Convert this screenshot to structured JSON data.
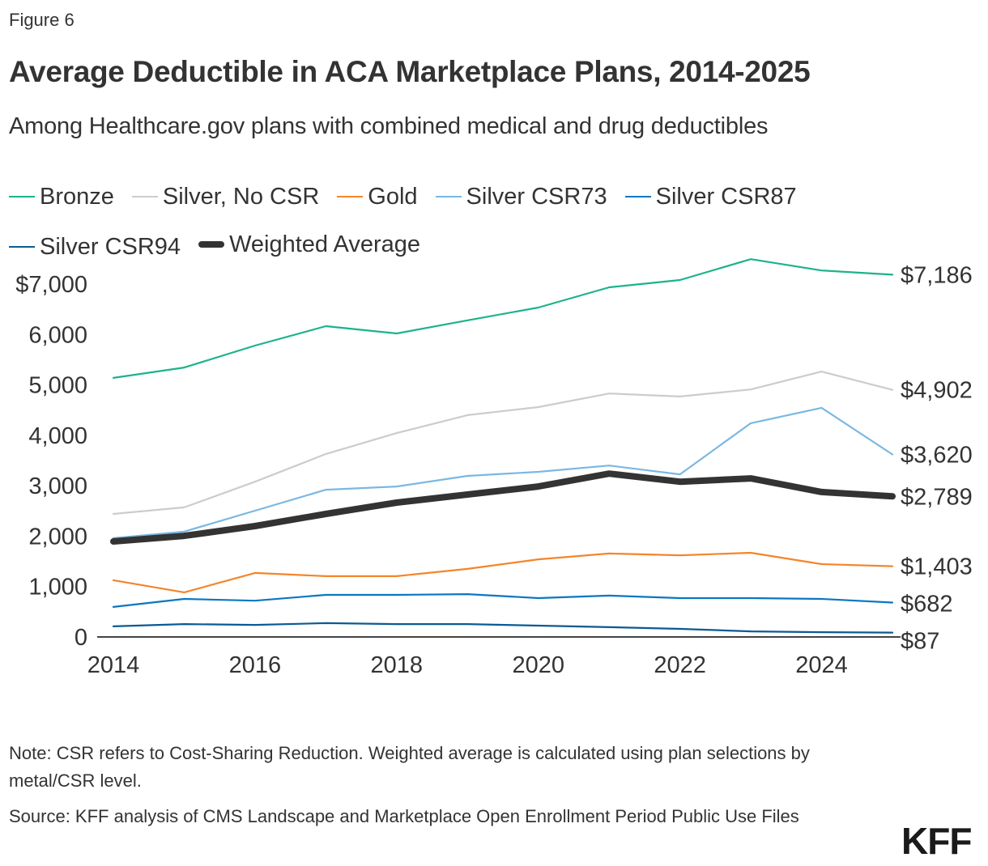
{
  "figure_label": "Figure 6",
  "title": "Average Deductible in ACA Marketplace Plans, 2014-2025",
  "subtitle": "Among Healthcare.gov plans with combined medical and drug deductibles",
  "note": "Note: CSR refers to Cost-Sharing Reduction. Weighted average is calculated using plan selections by metal/CSR level.",
  "source": "Source: KFF analysis of CMS Landscape and Marketplace Open Enrollment Period Public Use Files",
  "logo": "KFF",
  "chart_data": {
    "type": "line",
    "title": "Average Deductible in ACA Marketplace Plans, 2014-2025",
    "subtitle": "Among Healthcare.gov plans with combined medical and drug deductibles",
    "xlabel": "",
    "ylabel": "",
    "x": [
      2014,
      2015,
      2016,
      2017,
      2018,
      2019,
      2020,
      2021,
      2022,
      2023,
      2024,
      2025
    ],
    "x_ticks": [
      2014,
      2016,
      2018,
      2020,
      2022,
      2024
    ],
    "x_tick_labels": [
      "2014",
      "2016",
      "2018",
      "2020",
      "2022",
      "2024"
    ],
    "y_ticks": [
      0,
      1000,
      2000,
      3000,
      4000,
      5000,
      6000,
      7000
    ],
    "y_tick_labels": [
      "0",
      "1,000",
      "2,000",
      "3,000",
      "4,000",
      "5,000",
      "6,000",
      "$7,000"
    ],
    "ylim": [
      0,
      7000
    ],
    "xlim": [
      2014,
      2025
    ],
    "grid": false,
    "legend_position": "top",
    "series": [
      {
        "name": "Bronze",
        "color": "#1cb38b",
        "weight": "normal",
        "values": [
          5140,
          5345,
          5780,
          6165,
          6020,
          6280,
          6535,
          6935,
          7080,
          7495,
          7270,
          7186
        ],
        "end_label": "$7,186"
      },
      {
        "name": "Silver, No CSR",
        "color": "#cccccc",
        "weight": "normal",
        "values": [
          2440,
          2570,
          3080,
          3630,
          4045,
          4400,
          4560,
          4830,
          4770,
          4910,
          5265,
          4902
        ],
        "end_label": "$4,902"
      },
      {
        "name": "Gold",
        "color": "#f4852a",
        "weight": "normal",
        "values": [
          1125,
          885,
          1270,
          1205,
          1205,
          1350,
          1540,
          1655,
          1620,
          1670,
          1445,
          1403
        ],
        "end_label": "$1,403"
      },
      {
        "name": "Silver CSR73",
        "color": "#7ab8e2",
        "weight": "normal",
        "values": [
          1960,
          2090,
          2505,
          2920,
          2985,
          3195,
          3275,
          3400,
          3225,
          4240,
          4545,
          3620
        ],
        "end_label": "$3,620"
      },
      {
        "name": "Silver CSR87",
        "color": "#0a77c2",
        "weight": "normal",
        "values": [
          595,
          755,
          720,
          835,
          835,
          850,
          770,
          820,
          770,
          770,
          755,
          682
        ],
        "end_label": "$682"
      },
      {
        "name": "Silver CSR94",
        "color": "#0b5a94",
        "weight": "normal",
        "values": [
          210,
          255,
          240,
          275,
          255,
          255,
          225,
          195,
          160,
          110,
          95,
          87
        ],
        "end_label": "$87"
      },
      {
        "name": "Weighted Average",
        "color": "#333333",
        "weight": "thick",
        "values": [
          1895,
          2005,
          2200,
          2440,
          2665,
          2825,
          2985,
          3240,
          3080,
          3145,
          2875,
          2789
        ],
        "end_label": "$2,789"
      }
    ]
  }
}
